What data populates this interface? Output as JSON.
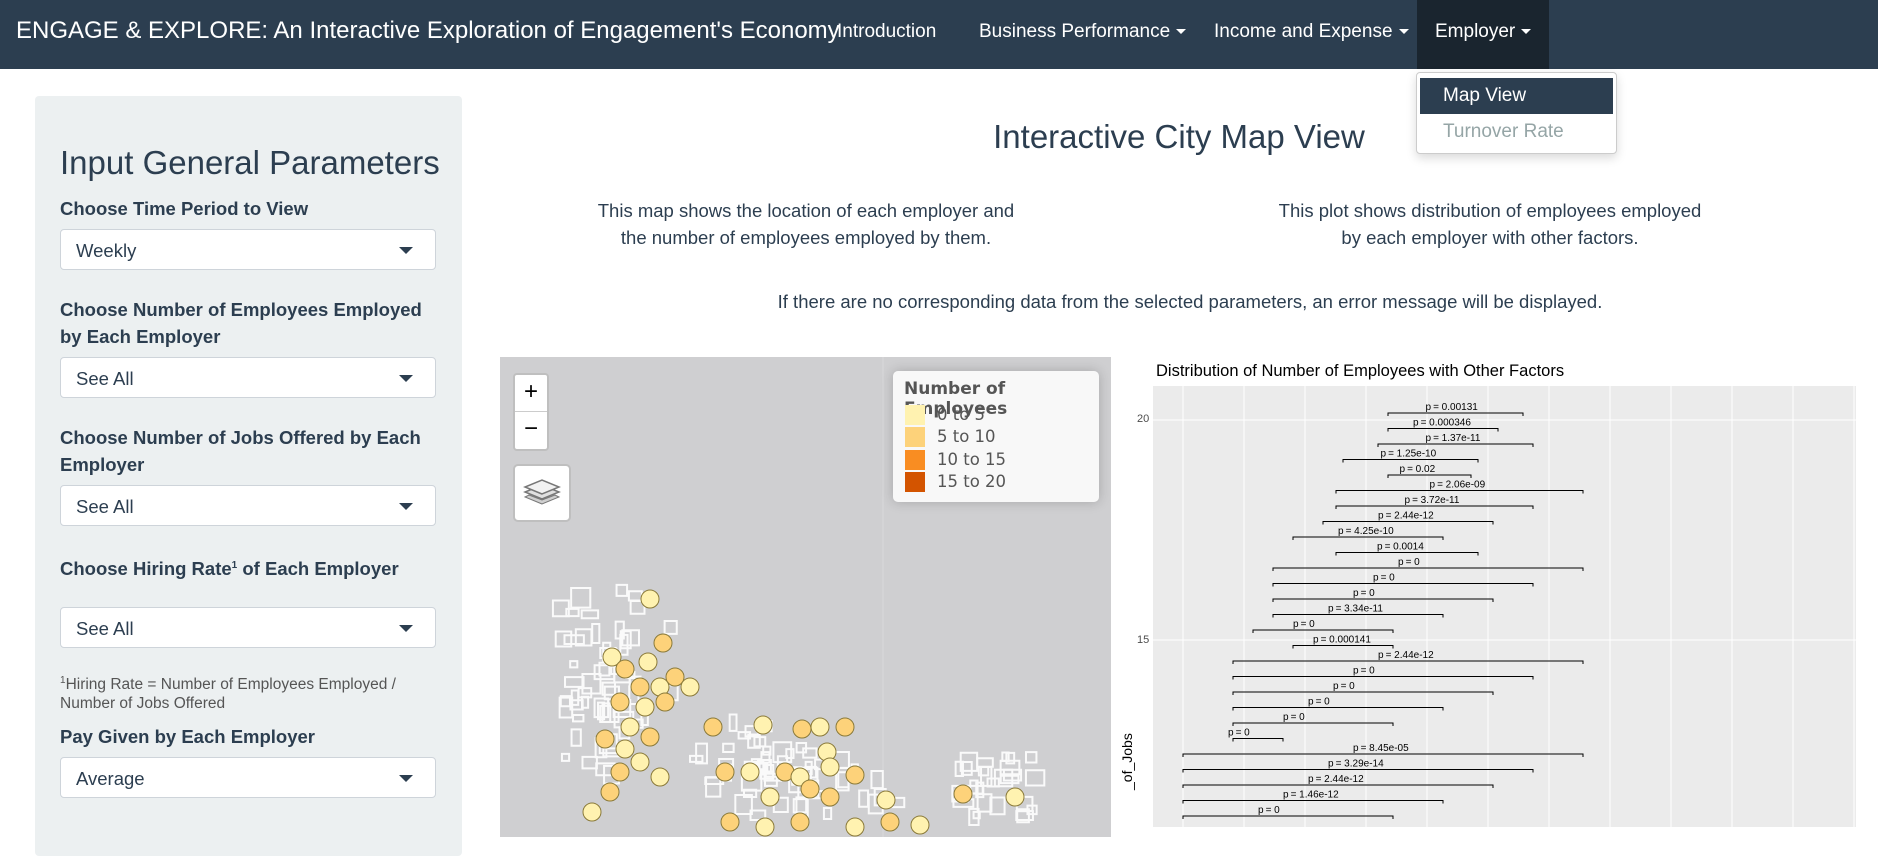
{
  "navbar": {
    "brand": "ENGAGE & EXPLORE: An Interactive Exploration of Engagement's Economy",
    "items": [
      "Introduction",
      "Business Performance",
      "Income and Expense",
      "Employer"
    ],
    "dropdown": [
      "Map View",
      "Turnover Rate"
    ]
  },
  "sidebar": {
    "title": "Input General Parameters",
    "time_label": "Choose Time Period to View",
    "time_value": "Weekly",
    "employees_label": "Choose Number of Employees Employed by Each Employer",
    "employees_value": "See All",
    "jobs_label": "Choose Number of Jobs Offered by Each Employer",
    "jobs_value": "See All",
    "hiring_label_pre": "Choose Hiring Rate",
    "hiring_sup": "1",
    "hiring_label_post": " of Each Employer",
    "hiring_value": "See All",
    "footnote_sup": "1",
    "footnote": "Hiring Rate = Number of Employees Employed / Number of Jobs Offered",
    "pay_label": "Pay Given by Each Employer",
    "pay_value": "Average"
  },
  "main": {
    "title": "Interactive City Map View",
    "desc_map": "This map shows the location of each employer and the number of employees employed by them.",
    "desc_plot": "This plot shows distribution of employees employed by each employer with other factors.",
    "warning": "If there are no corresponding data from the selected parameters, an error message will be displayed."
  },
  "map": {
    "zoom_in": "+",
    "zoom_out": "−",
    "legend_title": "Number of Employees",
    "legend": [
      {
        "label": "0 to 5",
        "color": "#fff2b0"
      },
      {
        "label": "5 to 10",
        "color": "#fdd27a"
      },
      {
        "label": "10 to 15",
        "color": "#f98d22"
      },
      {
        "label": "15 to 20",
        "color": "#d35400"
      }
    ]
  },
  "plot": {
    "title": "Distribution of Number of Employees with Other Factors",
    "ylabel": "_of_Jobs",
    "yticks": [
      "20",
      "15"
    ],
    "pvalues": [
      "= 0.00131",
      "= 0.000346",
      "= 1.37e-11",
      "= 1.25e-10",
      "= 0.02",
      "= 2.06e-09",
      "= 3.72e-11",
      "= 2.44e-12",
      "= 4.25e-10",
      "= 0.0014",
      "= 0",
      "= 0",
      "= 0",
      "= 3.34e-11",
      "= 0",
      "= 0.000141",
      "= 2.44e-12",
      "= 0",
      "= 0",
      "= 0",
      "= 0",
      "= 0",
      "= 8.45e-05",
      "= 3.29e-14",
      "= 2.44e-12",
      "= 1.46e-12",
      "= 0"
    ]
  }
}
